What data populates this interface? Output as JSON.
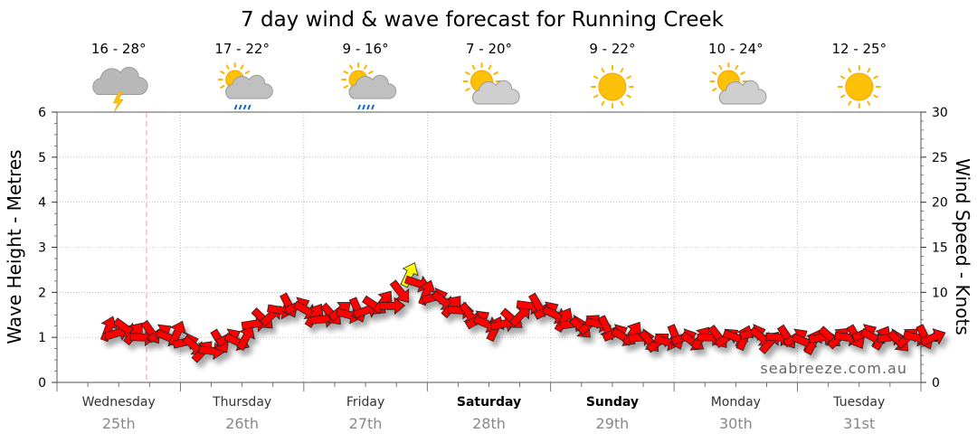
{
  "chart_data": {
    "type": "line",
    "title": "7 day wind & wave forecast for Running Creek",
    "ylabel_left": "Wave Height - Metres",
    "ylabel_right": "Wind Speed - Knots",
    "ylim_left": [
      0,
      6
    ],
    "ylim_right": [
      0,
      30
    ],
    "yticks_left": [
      "0",
      "1",
      "2",
      "3",
      "4",
      "5",
      "6"
    ],
    "yticks_right": [
      "0",
      "5",
      "10",
      "15",
      "20",
      "25",
      "30"
    ],
    "grid": true,
    "watermark": "seabreeze.com.au",
    "days": [
      {
        "name": "Wednesday",
        "date": "25th",
        "temp": "16 - 28°",
        "icon": "storm-cloud-icon",
        "bold": false
      },
      {
        "name": "Thursday",
        "date": "26th",
        "temp": "17 - 22°",
        "icon": "sun-cloud-rain-icon",
        "bold": false
      },
      {
        "name": "Friday",
        "date": "27th",
        "temp": "9 - 16°",
        "icon": "sun-cloud-rain-icon",
        "bold": false
      },
      {
        "name": "Saturday",
        "date": "28th",
        "temp": "7 - 20°",
        "icon": "sun-cloud-icon",
        "bold": true
      },
      {
        "name": "Sunday",
        "date": "29th",
        "temp": "9 - 22°",
        "icon": "sun-icon",
        "bold": true
      },
      {
        "name": "Monday",
        "date": "30th",
        "temp": "10 - 24°",
        "icon": "sun-cloud-icon",
        "bold": false
      },
      {
        "name": "Tuesday",
        "date": "31st",
        "temp": "12 - 25°",
        "icon": "sun-icon",
        "bold": false
      }
    ],
    "series": [
      {
        "color": "#ff0000",
        "highlight_color": "#ffff00",
        "wind_knots": [
          6,
          5.5,
          6,
          5.5,
          5,
          5.5,
          5.5,
          5,
          5.5,
          4.5,
          4,
          3.5,
          3.5,
          4.5,
          5,
          4.5,
          5,
          6.5,
          7,
          7.5,
          8,
          8.5,
          8.5,
          8,
          7.5,
          7,
          7.5,
          8,
          7.5,
          8,
          8,
          8.5,
          9,
          8.5,
          10,
          12,
          11,
          10,
          9.5,
          9,
          8.5,
          8,
          7.5,
          7,
          6.5,
          6,
          6.5,
          7,
          7.5,
          8.5,
          8.5,
          8,
          7.5,
          7,
          6.5,
          6,
          6.5,
          6.5,
          6,
          5.5,
          5,
          5.5,
          5,
          4.5,
          4.5,
          4.5,
          5,
          5,
          4.5,
          5,
          5,
          5,
          5,
          5,
          5,
          5.5,
          5,
          4.5,
          5,
          5,
          5,
          4.5,
          4.5,
          5,
          5,
          5,
          5,
          5,
          5.5,
          5,
          5,
          5,
          4.5,
          5,
          5,
          5,
          5
        ],
        "highlight_index": 35
      }
    ]
  }
}
